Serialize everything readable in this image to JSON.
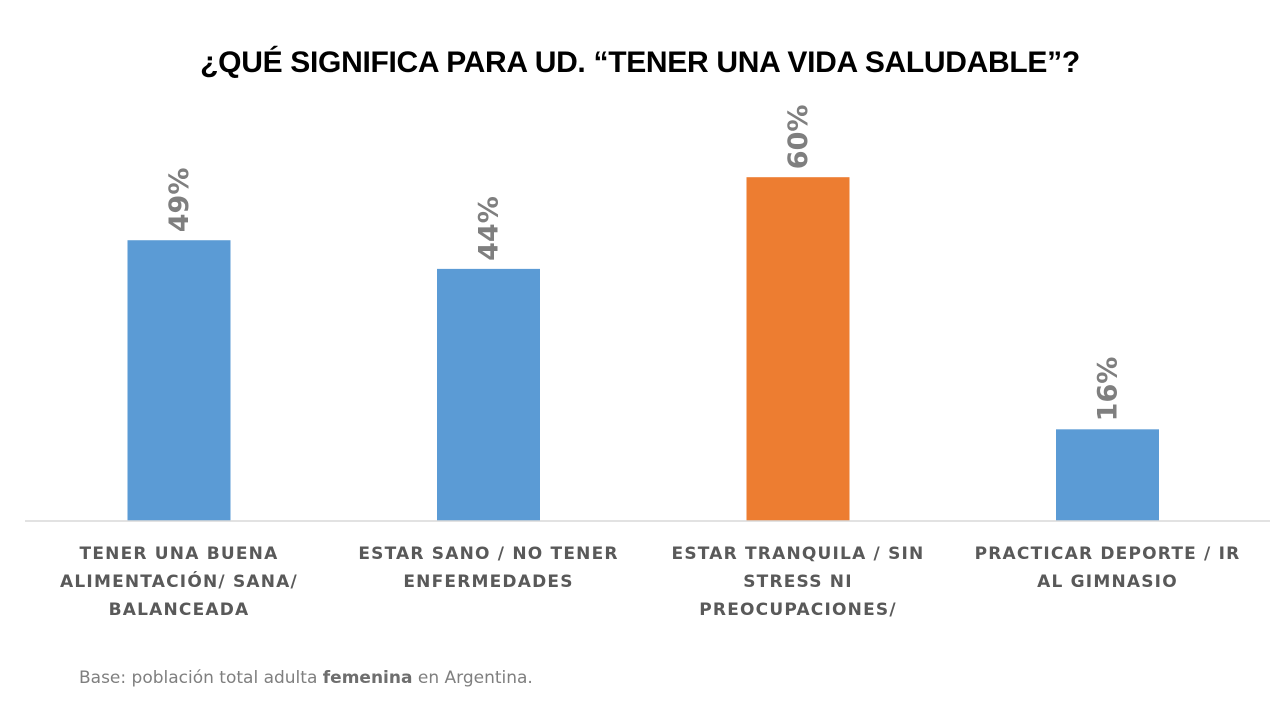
{
  "chart_data": {
    "type": "bar",
    "title": "¿QUÉ SIGNIFICA PARA UD. “TENER UNA VIDA SALUDABLE”?",
    "categories": [
      "TENER UNA BUENA ALIMENTACIÓN/ SANA/ BALANCEADA",
      "ESTAR SANO / NO TENER ENFERMEDADES",
      "ESTAR TRANQUILA / SIN STRESS NI PREOCUPACIONES/",
      "PRACTICAR DEPORTE / IR AL GIMNASIO"
    ],
    "category_lines": [
      [
        "TENER UNA BUENA",
        "ALIMENTACIÓN/ SANA/",
        "BALANCEADA"
      ],
      [
        "ESTAR SANO / NO TENER",
        "ENFERMEDADES"
      ],
      [
        "ESTAR TRANQUILA / SIN",
        "STRESS NI",
        "PREOCUPACIONES/"
      ],
      [
        "PRACTICAR DEPORTE / IR",
        "AL GIMNASIO"
      ]
    ],
    "values": [
      49,
      44,
      60,
      16
    ],
    "data_labels": [
      "49%",
      "44%",
      "60%",
      "16%"
    ],
    "unit": "%",
    "highlight_index": 2,
    "colors": {
      "default": "#5b9bd5",
      "highlight": "#ed7d31",
      "data_label": "#7f7f7f",
      "axis": "#d9d9d9"
    },
    "xlabel": "",
    "ylabel": "",
    "ylim": [
      0,
      60
    ],
    "grid": false,
    "legend": "none"
  },
  "footnote": {
    "prefix": "Base: población total adulta ",
    "bold": "femenina",
    "suffix": " en Argentina."
  }
}
